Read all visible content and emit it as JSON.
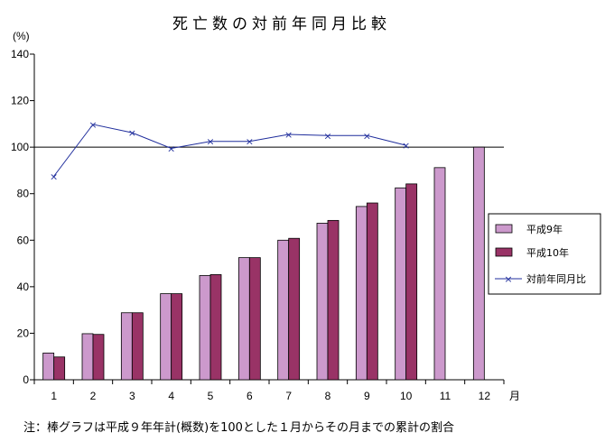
{
  "chart_data": {
    "type": "bar",
    "title": "死亡数の対前年同月比較",
    "ylabel": "(%)",
    "xlabel": "月",
    "categories": [
      "1",
      "2",
      "3",
      "4",
      "5",
      "6",
      "7",
      "8",
      "9",
      "10",
      "11",
      "12"
    ],
    "ylim": [
      0,
      140
    ],
    "yticks": [
      0,
      20,
      40,
      60,
      80,
      100,
      120,
      140
    ],
    "reference_line": 100,
    "series": [
      {
        "name": "平成9年",
        "type": "bar",
        "color": "#cc99cc",
        "values": [
          11.5,
          19.8,
          28.8,
          37.0,
          44.8,
          52.5,
          60.0,
          67.3,
          74.5,
          82.5,
          91.2,
          100
        ]
      },
      {
        "name": "平成10年",
        "type": "bar",
        "color": "#993366",
        "values": [
          9.8,
          19.5,
          28.8,
          37.0,
          45.2,
          52.5,
          60.8,
          68.5,
          76.0,
          84.2,
          null,
          null
        ]
      },
      {
        "name": "対前年同月比",
        "type": "line",
        "color": "#1f2d9c",
        "marker": "x",
        "values": [
          87.5,
          109.8,
          106.2,
          99.5,
          102.5,
          102.5,
          105.5,
          105.0,
          105.0,
          100.8,
          null,
          null
        ]
      }
    ],
    "legend_position": "right",
    "grid": false
  },
  "footnote": "注：棒グラフは平成９年年計(概数)を100とした１月からその月までの累計の割合"
}
